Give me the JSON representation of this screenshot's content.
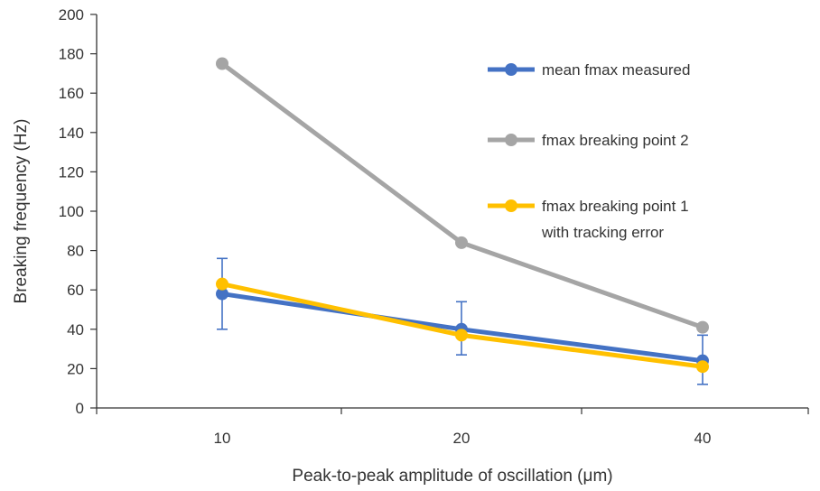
{
  "chart_data": {
    "type": "line",
    "title": "",
    "xlabel": "Peak-to-peak amplitude of oscillation (μm)",
    "ylabel": "Breaking frequency (Hz)",
    "categories": [
      "10",
      "20",
      "40"
    ],
    "ylim": [
      0,
      200
    ],
    "yticks": [
      0,
      20,
      40,
      60,
      80,
      100,
      120,
      140,
      160,
      180,
      200
    ],
    "grid": false,
    "legend": "right",
    "series": [
      {
        "name": "mean fmax measured",
        "color": "#4472C4",
        "values": [
          58,
          40,
          24
        ],
        "error_low": [
          40,
          27,
          12
        ],
        "error_high": [
          76,
          54,
          37
        ]
      },
      {
        "name": "fmax breaking point 2",
        "color": "#A5A5A5",
        "values": [
          175,
          84,
          41
        ]
      },
      {
        "name": "fmax breaking point 1 with tracking error",
        "name_lines": [
          "fmax breaking point 1",
          "with tracking error"
        ],
        "color": "#FFC000",
        "values": [
          63,
          37,
          21
        ]
      }
    ]
  }
}
